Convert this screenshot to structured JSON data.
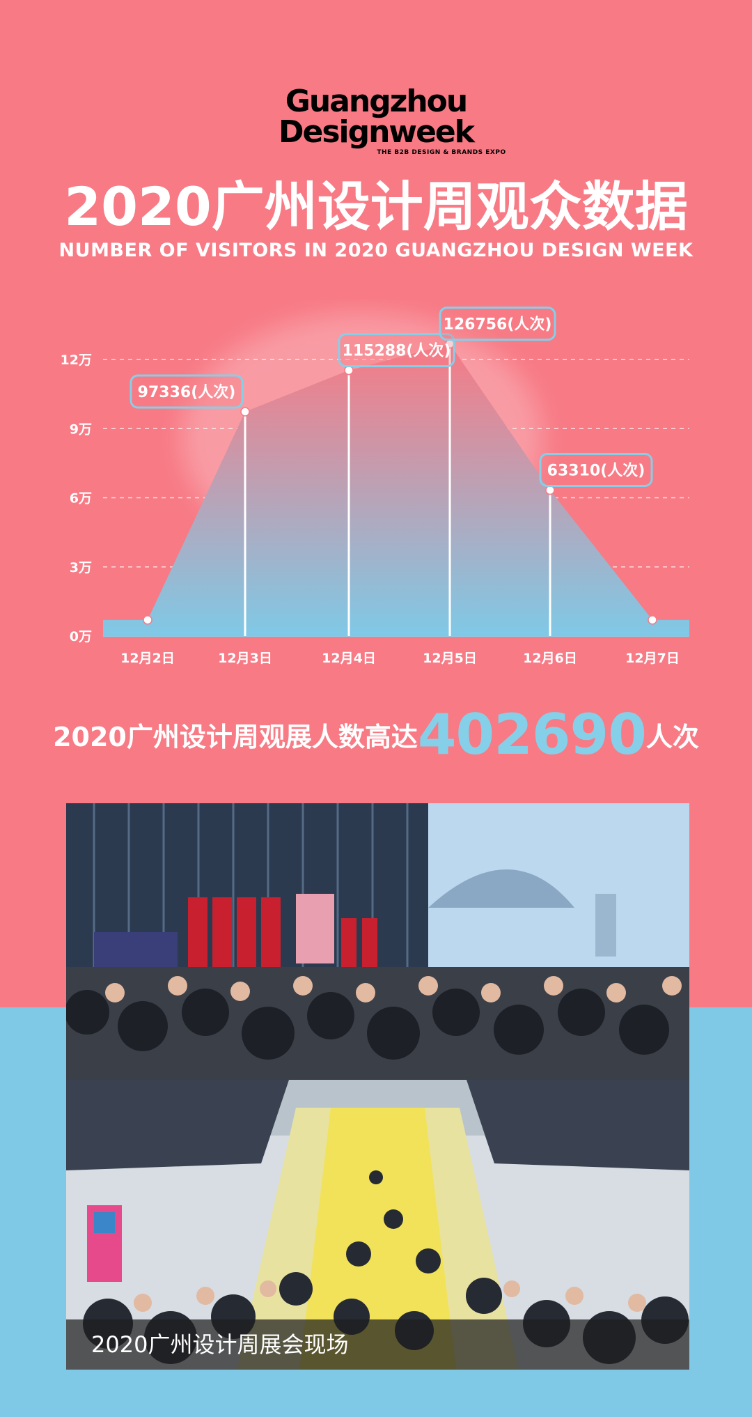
{
  "logo": {
    "line1": "Guangzhou",
    "line2": "Designweek",
    "tagline": "THE B2B DESIGN & BRANDS EXPO"
  },
  "title": {
    "cn": "2020广州设计周观众数据",
    "en": "NUMBER OF VISITORS IN 2020 GUANGZHOU DESIGN WEEK"
  },
  "chart_data": {
    "type": "area",
    "categories": [
      "12月2日",
      "12月3日",
      "12月4日",
      "12月5日",
      "12月6日",
      "12月7日"
    ],
    "values": [
      null,
      97336,
      115288,
      126756,
      63310,
      null
    ],
    "callouts": [
      "",
      "97336(人次)",
      "115288(人次)",
      "126756(人次)",
      "63310(人次)",
      ""
    ],
    "ylim": [
      0,
      120000
    ],
    "yticks": [
      0,
      30000,
      60000,
      90000,
      120000
    ],
    "ytick_labels": [
      "0万",
      "3万",
      "6万",
      "9万",
      "12万"
    ],
    "grid": true,
    "colors": {
      "area_top": "#f77a85",
      "area_bottom": "#7fc9e6",
      "callout_border": "#86cfe9",
      "line": "#ffffff"
    }
  },
  "summary": {
    "prefix": "2020广州设计周观展人数高达",
    "number": "402690",
    "suffix": "人次"
  },
  "photos": {
    "caption": "2020广州设计周展会现场"
  }
}
